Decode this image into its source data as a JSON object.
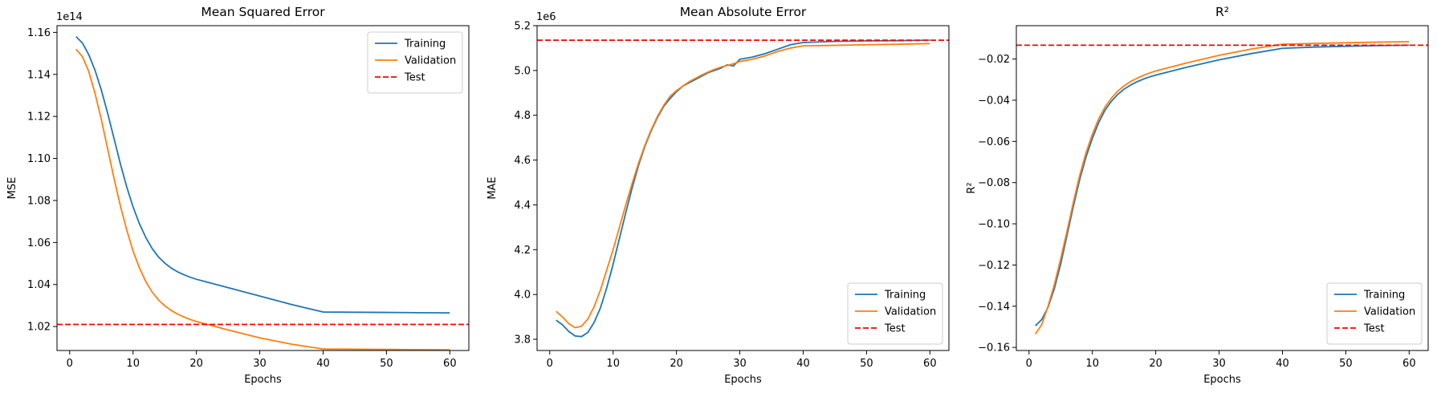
{
  "figure": {
    "background": "#ffffff"
  },
  "chart_data": [
    {
      "type": "line",
      "title": "Mean Squared Error",
      "xlabel": "Epochs",
      "ylabel": "MSE",
      "offset_label": "1e14",
      "offset": 100000000000000.0,
      "xlim": [
        -2,
        63
      ],
      "ylim": [
        1.0086,
        1.1632
      ],
      "xticks": [
        0,
        10,
        20,
        30,
        40,
        50,
        60
      ],
      "yticks": [
        1.02,
        1.04,
        1.06,
        1.08,
        1.1,
        1.12,
        1.14,
        1.16
      ],
      "ytick_decimals": 2,
      "legend": {
        "placement": "top-right"
      },
      "grid": false,
      "series": [
        {
          "name": "Training",
          "color": "#1f77b4",
          "dashed": false,
          "x": [
            1,
            2,
            3,
            4,
            5,
            6,
            7,
            8,
            9,
            10,
            11,
            12,
            13,
            14,
            15,
            16,
            17,
            18,
            19,
            20,
            25,
            30,
            35,
            40,
            45,
            50,
            55,
            60
          ],
          "y": [
            1.158,
            1.155,
            1.1495,
            1.142,
            1.1325,
            1.1215,
            1.1095,
            1.0975,
            1.0865,
            1.077,
            1.069,
            1.0625,
            1.0572,
            1.0532,
            1.0502,
            1.0479,
            1.0461,
            1.0447,
            1.0435,
            1.0425,
            1.0385,
            1.0345,
            1.0305,
            1.0269,
            1.0268,
            1.0267,
            1.0266,
            1.0265
          ]
        },
        {
          "name": "Validation",
          "color": "#ff7f0e",
          "dashed": false,
          "x": [
            1,
            2,
            3,
            4,
            5,
            6,
            7,
            8,
            9,
            10,
            11,
            12,
            13,
            14,
            15,
            16,
            17,
            18,
            19,
            20,
            25,
            30,
            35,
            40,
            45,
            50,
            55,
            60
          ],
          "y": [
            1.152,
            1.1485,
            1.1415,
            1.131,
            1.1185,
            1.1045,
            1.0905,
            1.0775,
            1.066,
            1.056,
            1.048,
            1.0415,
            1.0365,
            1.0327,
            1.0299,
            1.0277,
            1.026,
            1.0246,
            1.0234,
            1.0224,
            1.0184,
            1.0146,
            1.0116,
            1.0093,
            1.0092,
            1.0091,
            1.009,
            1.0089
          ]
        },
        {
          "name": "Test",
          "color": "#ff0000",
          "dashed": true,
          "hline": 1.021
        }
      ]
    },
    {
      "type": "line",
      "title": "Mean Absolute Error",
      "xlabel": "Epochs",
      "ylabel": "MAE",
      "offset_label": "1e6",
      "offset": 1000000.0,
      "xlim": [
        -2,
        63
      ],
      "ylim": [
        3.75,
        5.2
      ],
      "xticks": [
        0,
        10,
        20,
        30,
        40,
        50,
        60
      ],
      "yticks": [
        3.8,
        4.0,
        4.2,
        4.4,
        4.6,
        4.8,
        5.0,
        5.2
      ],
      "ytick_decimals": 1,
      "legend": {
        "placement": "bottom-right"
      },
      "grid": false,
      "series": [
        {
          "name": "Training",
          "color": "#1f77b4",
          "dashed": false,
          "x": [
            1,
            2,
            3,
            4,
            5,
            6,
            7,
            8,
            9,
            10,
            11,
            12,
            13,
            14,
            15,
            16,
            17,
            18,
            19,
            20,
            21,
            22,
            23,
            24,
            25,
            26,
            27,
            28,
            29,
            30,
            32,
            34,
            36,
            38,
            40,
            45,
            50,
            55,
            60
          ],
          "y": [
            3.885,
            3.865,
            3.835,
            3.815,
            3.812,
            3.83,
            3.875,
            3.94,
            4.03,
            4.135,
            4.25,
            4.365,
            4.475,
            4.575,
            4.66,
            4.73,
            4.79,
            4.84,
            4.875,
            4.905,
            4.93,
            4.945,
            4.96,
            4.975,
            4.99,
            5.0,
            5.01,
            5.025,
            5.02,
            5.05,
            5.06,
            5.075,
            5.095,
            5.115,
            5.125,
            5.13,
            5.132,
            5.133,
            5.135
          ]
        },
        {
          "name": "Validation",
          "color": "#ff7f0e",
          "dashed": false,
          "x": [
            1,
            2,
            3,
            4,
            5,
            6,
            7,
            8,
            9,
            10,
            11,
            12,
            13,
            14,
            15,
            16,
            17,
            18,
            19,
            20,
            21,
            22,
            23,
            24,
            25,
            26,
            27,
            28,
            29,
            30,
            32,
            34,
            36,
            38,
            40,
            45,
            50,
            55,
            60
          ],
          "y": [
            3.925,
            3.9,
            3.87,
            3.852,
            3.858,
            3.89,
            3.945,
            4.02,
            4.11,
            4.2,
            4.3,
            4.4,
            4.495,
            4.585,
            4.665,
            4.735,
            4.795,
            4.845,
            4.885,
            4.91,
            4.93,
            4.95,
            4.965,
            4.98,
            4.993,
            5.005,
            5.015,
            5.022,
            5.03,
            5.04,
            5.05,
            5.065,
            5.085,
            5.1,
            5.11,
            5.112,
            5.115,
            5.117,
            5.12
          ]
        },
        {
          "name": "Test",
          "color": "#ff0000",
          "dashed": true,
          "hline": 5.135
        }
      ]
    },
    {
      "type": "line",
      "title": "R²",
      "xlabel": "Epochs",
      "ylabel": "R²",
      "offset_label": "",
      "offset": 1,
      "xlim": [
        -2,
        63
      ],
      "ylim": [
        -0.1615,
        -0.0038
      ],
      "xticks": [
        0,
        10,
        20,
        30,
        40,
        50,
        60
      ],
      "yticks": [
        -0.16,
        -0.14,
        -0.12,
        -0.1,
        -0.08,
        -0.06,
        -0.04,
        -0.02
      ],
      "ytick_decimals": 2,
      "legend": {
        "placement": "bottom-right"
      },
      "grid": false,
      "series": [
        {
          "name": "Training",
          "color": "#1f77b4",
          "dashed": false,
          "x": [
            1,
            2,
            3,
            4,
            5,
            6,
            7,
            8,
            9,
            10,
            11,
            12,
            13,
            14,
            15,
            16,
            17,
            18,
            19,
            20,
            25,
            30,
            35,
            40,
            45,
            50,
            55,
            60
          ],
          "y": [
            -0.1495,
            -0.1465,
            -0.1405,
            -0.1315,
            -0.1195,
            -0.1055,
            -0.0915,
            -0.0785,
            -0.0675,
            -0.0585,
            -0.0508,
            -0.0448,
            -0.0405,
            -0.0372,
            -0.0346,
            -0.0327,
            -0.0311,
            -0.0298,
            -0.0287,
            -0.0278,
            -0.0239,
            -0.0204,
            -0.0174,
            -0.0148,
            -0.0142,
            -0.0138,
            -0.0135,
            -0.0133
          ]
        },
        {
          "name": "Validation",
          "color": "#ff7f0e",
          "dashed": false,
          "x": [
            1,
            2,
            3,
            4,
            5,
            6,
            7,
            8,
            9,
            10,
            11,
            12,
            13,
            14,
            15,
            16,
            17,
            18,
            19,
            20,
            25,
            30,
            35,
            40,
            45,
            50,
            55,
            60
          ],
          "y": [
            -0.1535,
            -0.149,
            -0.14,
            -0.1295,
            -0.117,
            -0.1035,
            -0.0895,
            -0.0765,
            -0.0655,
            -0.0565,
            -0.049,
            -0.0433,
            -0.039,
            -0.0356,
            -0.033,
            -0.031,
            -0.0294,
            -0.028,
            -0.0268,
            -0.0258,
            -0.0218,
            -0.0182,
            -0.0152,
            -0.0128,
            -0.0124,
            -0.0121,
            -0.0118,
            -0.0116
          ]
        },
        {
          "name": "Test",
          "color": "#ff0000",
          "dashed": true,
          "hline": -0.0133
        }
      ]
    }
  ]
}
